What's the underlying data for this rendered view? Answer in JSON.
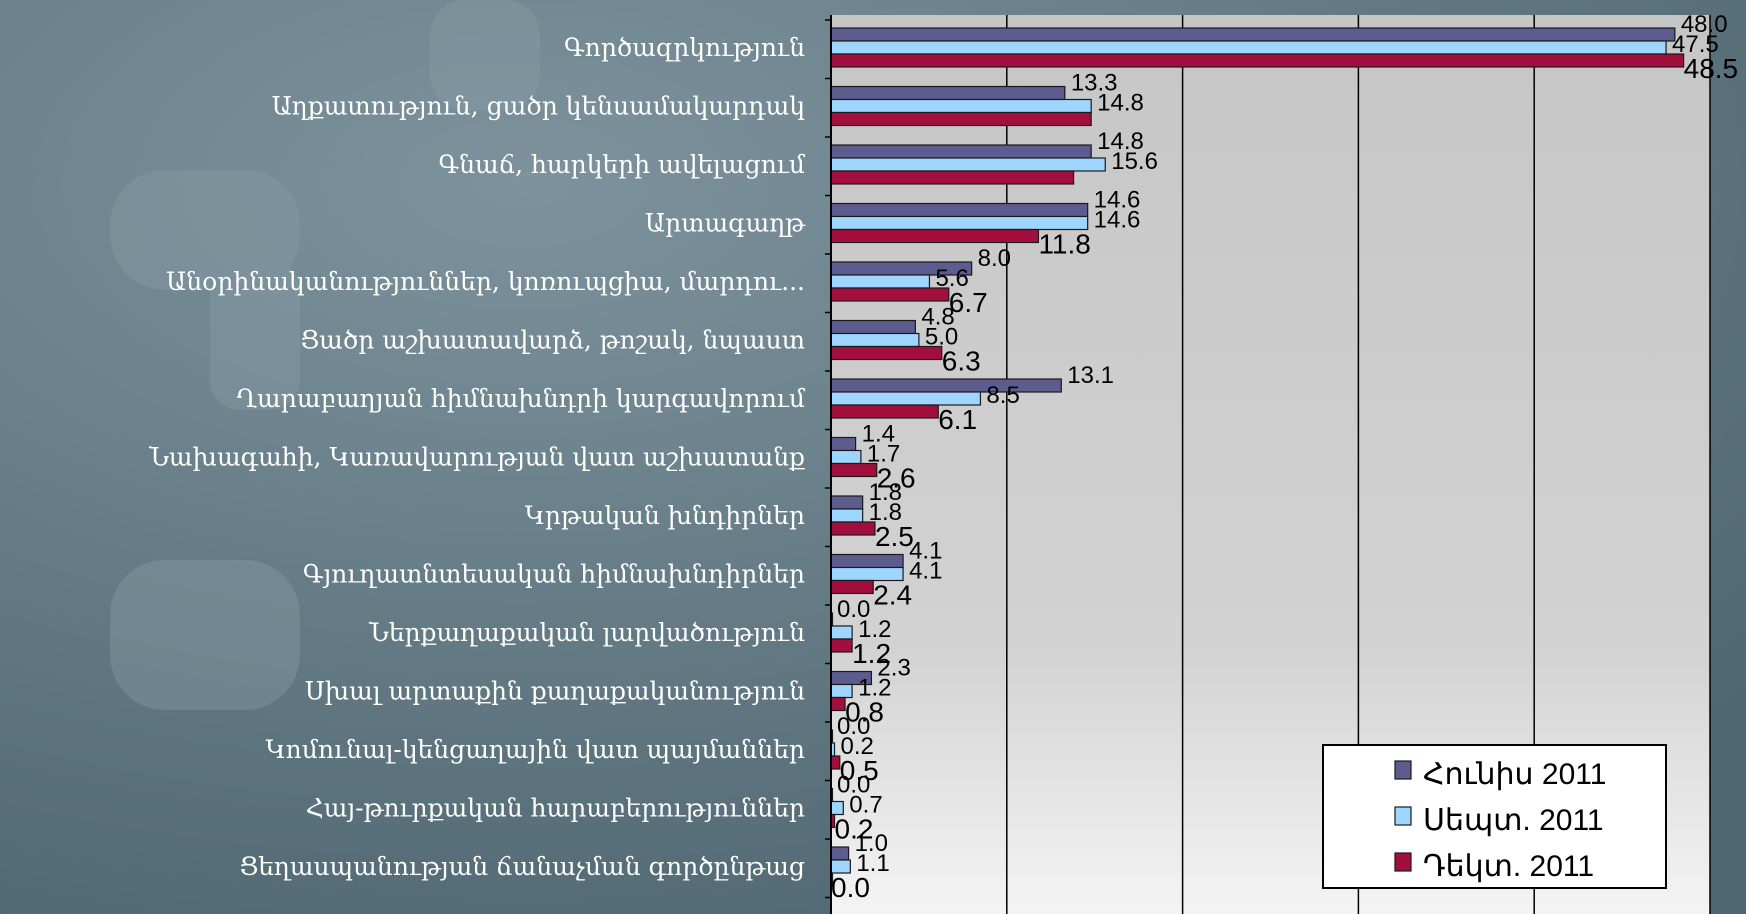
{
  "chart_data": {
    "type": "bar",
    "orientation": "horizontal",
    "categories": [
      "Գործազրկություն",
      "Աղքատություն, ցածր կենսամակարդակ",
      "Գնաճ, հարկերի ավելացում",
      "Արտագաղթ",
      "Անօրինականություններ, կոռուպցիա, մարդու...",
      "Ցածր աշխատավարձ, թոշակ, նպաստ",
      "Ղարաբաղյան հիմնախնդրի կարգավորում",
      "Նախագահի, Կառավարության վատ աշխատանք",
      "Կրթական խնդիրներ",
      "Գյուղատնտեսական հիմնախնդիրներ",
      "Ներքաղաքական լարվածություն",
      "Սխալ արտաքին քաղաքականություն",
      "Կոմունալ-կենցաղային վատ պայմաններ",
      "Հայ-թուրքական հարաբերություններ",
      "Ցեղասպանության ճանաչման գործընթաց"
    ],
    "series": [
      {
        "name": "Հունիս 2011",
        "color": "#5c5c8f",
        "values": [
          48.0,
          13.3,
          14.8,
          14.6,
          8.0,
          4.8,
          13.1,
          1.4,
          1.8,
          4.1,
          0.0,
          2.3,
          0.0,
          0.0,
          1.0
        ],
        "labels": [
          "48.0",
          "13.3",
          "14.8",
          "14.6",
          "8.0",
          "4.8",
          "13.1",
          "1.4",
          "1.8",
          "4.1",
          "0.0",
          "2.3",
          "0.0",
          "0.0",
          "1.0"
        ]
      },
      {
        "name": "Սեպտ. 2011",
        "color": "#9fd6ff",
        "values": [
          47.5,
          14.8,
          15.6,
          14.6,
          5.6,
          5.0,
          8.5,
          1.7,
          1.8,
          4.1,
          1.2,
          1.2,
          0.2,
          0.7,
          1.1
        ],
        "labels": [
          "47.5",
          "14.8",
          "15.6",
          "14.6",
          "5.6",
          "5.0",
          "8.5",
          "1.7",
          "1.8",
          "4.1",
          "1.2",
          "1.2",
          "0.2",
          "0.7",
          "1.1"
        ]
      },
      {
        "name": "Դեկտ. 2011",
        "color": "#a30f3c",
        "values": [
          48.5,
          14.8,
          13.8,
          11.8,
          6.7,
          6.3,
          6.1,
          2.6,
          2.5,
          2.4,
          1.2,
          0.8,
          0.5,
          0.2,
          0.0
        ],
        "labels": [
          "48.5",
          "",
          "",
          "11.8",
          "6.7",
          "6.3",
          "6.1",
          "2.6",
          "2.5",
          "2.4",
          "1.2",
          "0.8",
          "0.5",
          "0.2",
          "0.0"
        ]
      }
    ],
    "xlim": [
      0,
      50
    ],
    "grid": true,
    "legend_position": "bottom-right",
    "title": "",
    "xlabel": "",
    "ylabel": ""
  }
}
